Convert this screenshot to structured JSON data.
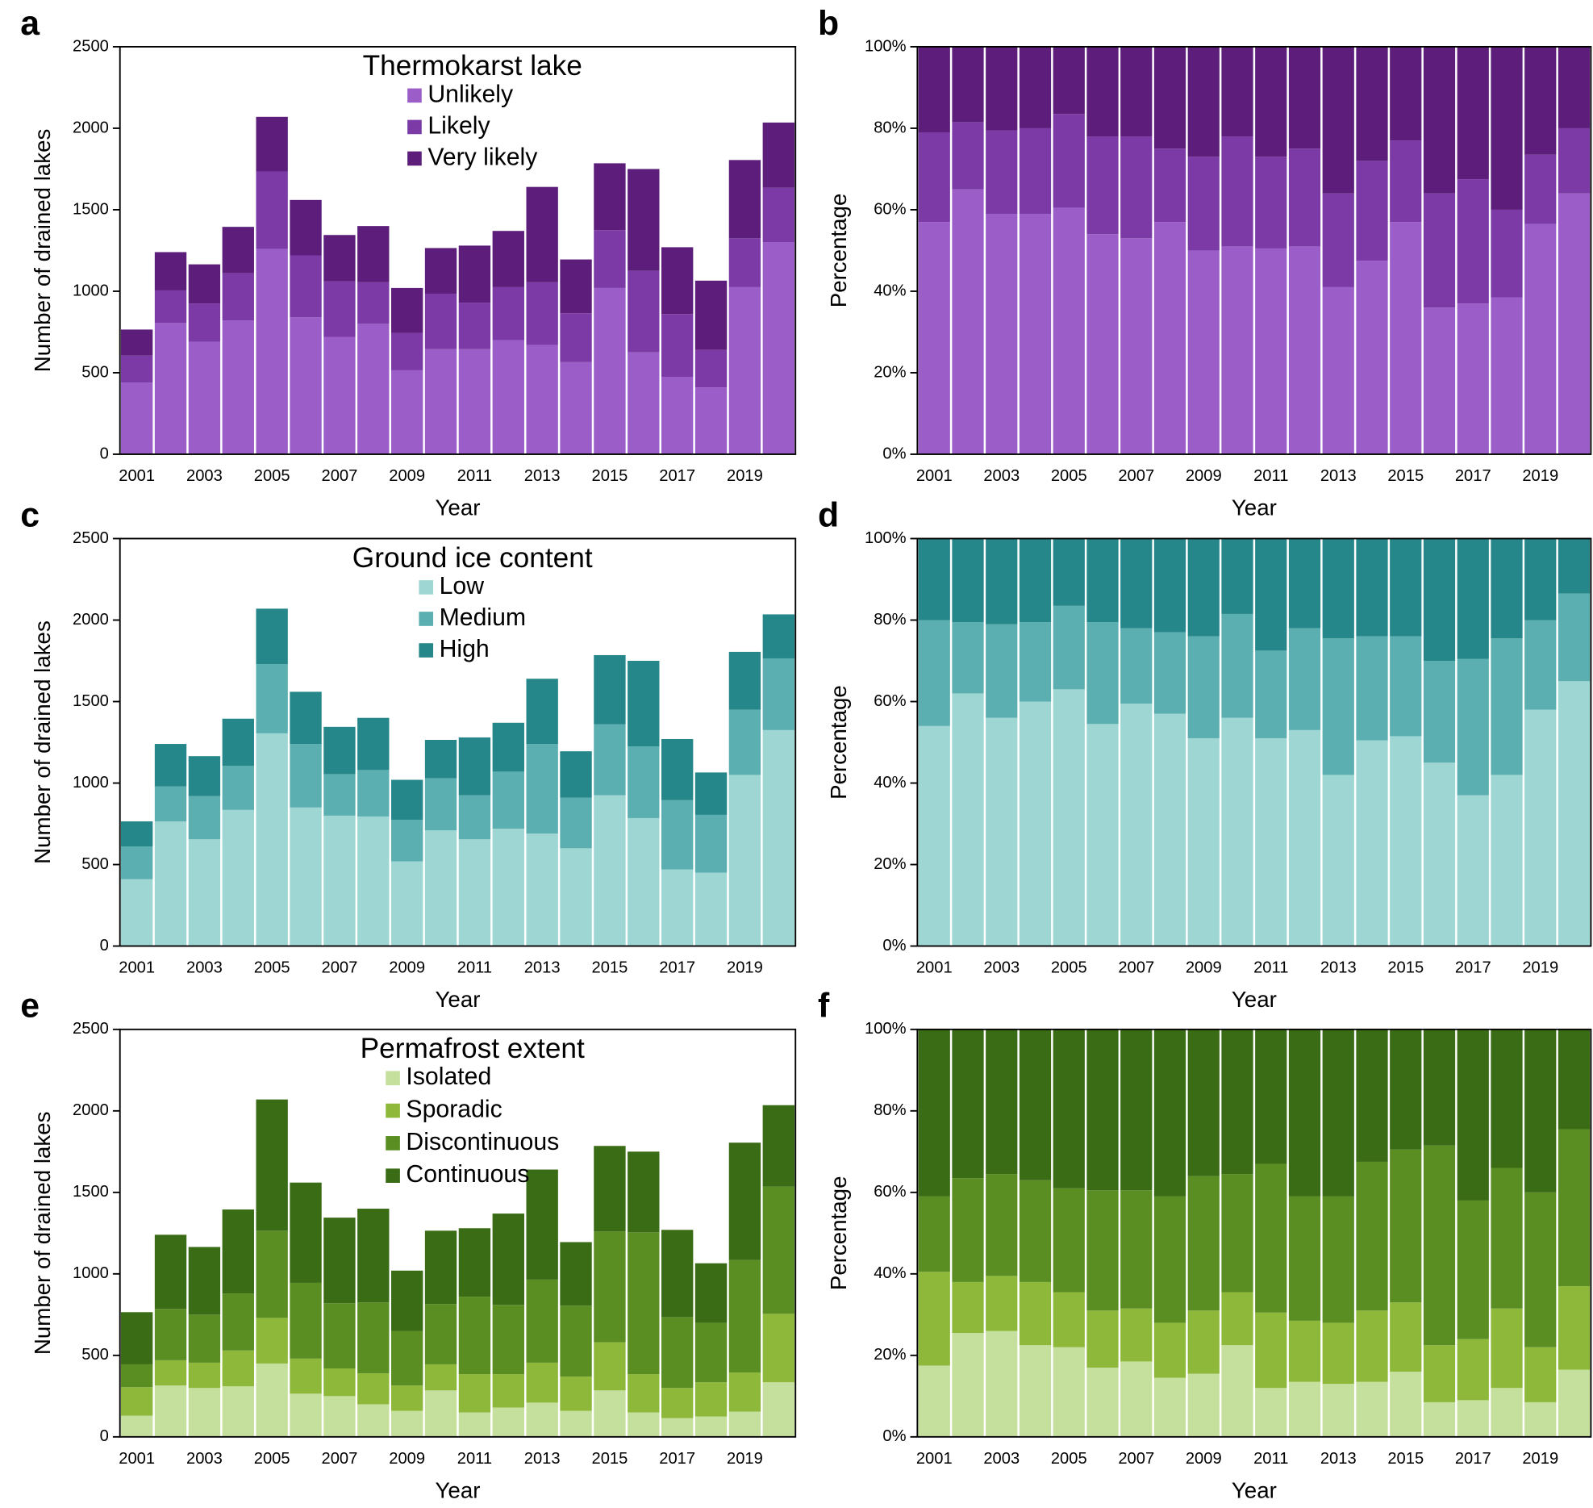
{
  "chart_data": [
    {
      "type": "bar",
      "stacked": true,
      "panel_label": "a",
      "legend_title": "Thermokarst lake",
      "x_label": "Year",
      "y_label": "Number of drained lakes",
      "categories": [
        "2001",
        null,
        "2003",
        null,
        "2005",
        null,
        "2007",
        null,
        "2009",
        null,
        "2011",
        null,
        "2013",
        null,
        "2015",
        null,
        "2017",
        null,
        "2019",
        null
      ],
      "ylim": [
        0,
        2500
      ],
      "yticks": [
        0,
        500,
        1000,
        1500,
        2000,
        2500
      ],
      "series": [
        {
          "name": "Unlikely",
          "color": "#9b5ec8",
          "values": [
            440,
            805,
            690,
            820,
            1260,
            840,
            720,
            800,
            515,
            645,
            645,
            700,
            670,
            565,
            1020,
            625,
            475,
            410,
            1025,
            1300
          ]
        },
        {
          "name": "Likely",
          "color": "#7b3aa6",
          "values": [
            165,
            200,
            235,
            290,
            475,
            380,
            340,
            255,
            230,
            340,
            285,
            325,
            385,
            300,
            355,
            500,
            385,
            230,
            300,
            335
          ]
        },
        {
          "name": "Very likely",
          "color": "#5c1e7a",
          "values": [
            160,
            235,
            240,
            285,
            335,
            340,
            285,
            345,
            275,
            280,
            350,
            345,
            585,
            330,
            410,
            625,
            410,
            425,
            480,
            400
          ]
        }
      ]
    },
    {
      "type": "bar",
      "stacked": true,
      "panel_label": "b",
      "x_label": "Year",
      "y_label": "Percentage",
      "categories": [
        "2001",
        null,
        "2003",
        null,
        "2005",
        null,
        "2007",
        null,
        "2009",
        null,
        "2011",
        null,
        "2013",
        null,
        "2015",
        null,
        "2017",
        null,
        "2019",
        null
      ],
      "ylim": [
        0,
        100
      ],
      "yticks": [
        {
          "value": 0,
          "label": "0%"
        },
        {
          "value": 20,
          "label": "20%"
        },
        {
          "value": 40,
          "label": "40%"
        },
        {
          "value": 60,
          "label": "60%"
        },
        {
          "value": 80,
          "label": "80%"
        },
        {
          "value": 100,
          "label": "100%"
        }
      ],
      "series": [
        {
          "color": "#9b5ec8",
          "values": [
            57,
            65,
            59,
            59,
            60.5,
            54,
            53,
            57,
            50,
            51,
            50.5,
            51,
            41,
            47.5,
            57,
            36,
            37,
            38.5,
            56.5,
            64
          ]
        },
        {
          "color": "#7b3aa6",
          "values": [
            22,
            16.5,
            20.5,
            21,
            23,
            24,
            25,
            18,
            23,
            27,
            22.5,
            24,
            23,
            24.5,
            20,
            28,
            30.5,
            21.5,
            17,
            16
          ]
        },
        {
          "color": "#5c1e7a",
          "values": [
            21,
            18.5,
            20.5,
            20,
            16.5,
            22,
            22,
            25,
            27,
            22,
            27,
            25,
            36,
            28,
            23,
            36,
            32.5,
            40,
            26.5,
            20
          ]
        }
      ]
    },
    {
      "type": "bar",
      "stacked": true,
      "panel_label": "c",
      "legend_title": "Ground ice content",
      "x_label": "Year",
      "y_label": "Number of drained lakes",
      "categories": [
        "2001",
        null,
        "2003",
        null,
        "2005",
        null,
        "2007",
        null,
        "2009",
        null,
        "2011",
        null,
        "2013",
        null,
        "2015",
        null,
        "2017",
        null,
        "2019",
        null
      ],
      "ylim": [
        0,
        2500
      ],
      "yticks": [
        0,
        500,
        1000,
        1500,
        2000,
        2500
      ],
      "series": [
        {
          "name": "Low",
          "color": "#9dd6d2",
          "values": [
            410,
            765,
            655,
            835,
            1305,
            850,
            800,
            795,
            520,
            710,
            655,
            720,
            690,
            600,
            925,
            785,
            470,
            450,
            1050,
            1325
          ]
        },
        {
          "name": "Medium",
          "color": "#5bafb0",
          "values": [
            200,
            215,
            265,
            270,
            425,
            390,
            255,
            285,
            255,
            320,
            270,
            350,
            550,
            310,
            435,
            440,
            425,
            355,
            400,
            440
          ]
        },
        {
          "name": "High",
          "color": "#25878a",
          "values": [
            155,
            260,
            245,
            290,
            340,
            320,
            290,
            320,
            245,
            235,
            355,
            300,
            400,
            285,
            425,
            525,
            375,
            260,
            355,
            270
          ]
        }
      ]
    },
    {
      "type": "bar",
      "stacked": true,
      "panel_label": "d",
      "x_label": "Year",
      "y_label": "Percentage",
      "categories": [
        "2001",
        null,
        "2003",
        null,
        "2005",
        null,
        "2007",
        null,
        "2009",
        null,
        "2011",
        null,
        "2013",
        null,
        "2015",
        null,
        "2017",
        null,
        "2019",
        null
      ],
      "ylim": [
        0,
        100
      ],
      "yticks": [
        {
          "value": 0,
          "label": "0%"
        },
        {
          "value": 20,
          "label": "20%"
        },
        {
          "value": 40,
          "label": "40%"
        },
        {
          "value": 60,
          "label": "60%"
        },
        {
          "value": 80,
          "label": "80%"
        },
        {
          "value": 100,
          "label": "100%"
        }
      ],
      "series": [
        {
          "color": "#9dd6d2",
          "values": [
            54,
            62,
            56,
            60,
            63,
            54.5,
            59.5,
            57,
            51,
            56,
            51,
            53,
            42,
            50.5,
            51.5,
            45,
            37,
            42,
            58,
            65
          ]
        },
        {
          "color": "#5bafb0",
          "values": [
            26,
            17.5,
            23,
            19.5,
            20.5,
            25,
            18.5,
            20,
            25,
            25.5,
            21.5,
            25,
            33.5,
            25.5,
            24.5,
            25,
            33.5,
            33.5,
            22,
            21.5
          ]
        },
        {
          "color": "#25878a",
          "values": [
            20,
            20.5,
            21,
            20.5,
            16.5,
            20.5,
            22,
            23,
            24,
            18.5,
            27.5,
            22,
            24.5,
            24,
            24,
            30,
            29.5,
            24.5,
            20,
            13.5
          ]
        }
      ]
    },
    {
      "type": "bar",
      "stacked": true,
      "panel_label": "e",
      "legend_title": "Permafrost extent",
      "x_label": "Year",
      "y_label": "Number of drained lakes",
      "categories": [
        "2001",
        null,
        "2003",
        null,
        "2005",
        null,
        "2007",
        null,
        "2009",
        null,
        "2011",
        null,
        "2013",
        null,
        "2015",
        null,
        "2017",
        null,
        "2019",
        null
      ],
      "ylim": [
        0,
        2500
      ],
      "yticks": [
        0,
        500,
        1000,
        1500,
        2000,
        2500
      ],
      "series": [
        {
          "name": "Isolated",
          "color": "#c5e09c",
          "values": [
            130,
            315,
            300,
            310,
            450,
            265,
            250,
            200,
            160,
            285,
            150,
            180,
            210,
            160,
            285,
            150,
            115,
            125,
            155,
            335
          ]
        },
        {
          "name": "Sporadic",
          "color": "#8db83a",
          "values": [
            175,
            155,
            155,
            220,
            280,
            215,
            170,
            190,
            155,
            160,
            235,
            205,
            245,
            210,
            295,
            235,
            185,
            210,
            240,
            420
          ]
        },
        {
          "name": "Discontinuous",
          "color": "#5a8e22",
          "values": [
            140,
            315,
            295,
            350,
            535,
            465,
            400,
            435,
            335,
            370,
            475,
            425,
            510,
            435,
            680,
            870,
            435,
            365,
            690,
            780
          ]
        },
        {
          "name": "Continuous",
          "color": "#3a6b15",
          "values": [
            320,
            455,
            415,
            515,
            805,
            615,
            525,
            575,
            370,
            450,
            420,
            560,
            675,
            390,
            525,
            495,
            535,
            365,
            720,
            500
          ]
        }
      ]
    },
    {
      "type": "bar",
      "stacked": true,
      "panel_label": "f",
      "x_label": "Year",
      "y_label": "Percentage",
      "categories": [
        "2001",
        null,
        "2003",
        null,
        "2005",
        null,
        "2007",
        null,
        "2009",
        null,
        "2011",
        null,
        "2013",
        null,
        "2015",
        null,
        "2017",
        null,
        "2019",
        null
      ],
      "ylim": [
        0,
        100
      ],
      "yticks": [
        {
          "value": 0,
          "label": "0%"
        },
        {
          "value": 20,
          "label": "20%"
        },
        {
          "value": 40,
          "label": "40%"
        },
        {
          "value": 60,
          "label": "60%"
        },
        {
          "value": 80,
          "label": "80%"
        },
        {
          "value": 100,
          "label": "100%"
        }
      ],
      "series": [
        {
          "color": "#c5e09c",
          "values": [
            17.5,
            25.5,
            26,
            22.5,
            22,
            17,
            18.5,
            14.5,
            15.5,
            22.5,
            12,
            13.5,
            13,
            13.5,
            16,
            8.5,
            9,
            12,
            8.5,
            16.5
          ]
        },
        {
          "color": "#8db83a",
          "values": [
            23,
            12.5,
            13.5,
            15.5,
            13.5,
            14,
            13,
            13.5,
            15.5,
            13,
            18.5,
            15,
            15,
            17.5,
            17,
            14,
            15,
            19.5,
            13.5,
            20.5
          ]
        },
        {
          "color": "#5a8e22",
          "values": [
            18.5,
            25.5,
            25,
            25,
            25.5,
            29.5,
            29,
            31,
            33,
            29,
            36.5,
            30.5,
            31,
            36.5,
            37.5,
            49,
            34,
            34.5,
            38,
            38.5
          ]
        },
        {
          "color": "#3a6b15",
          "values": [
            41,
            36.5,
            35.5,
            37,
            39,
            39.5,
            39.5,
            41,
            36,
            35.5,
            33,
            41,
            41,
            32.5,
            29.5,
            28.5,
            42,
            34,
            40,
            24.5
          ]
        }
      ]
    }
  ]
}
